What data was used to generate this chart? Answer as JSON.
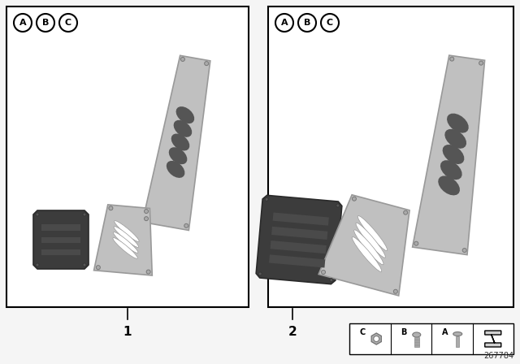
{
  "background": "#f5f5f5",
  "white": "#ffffff",
  "black": "#000000",
  "silver": "#c0c0c0",
  "silver_light": "#d8d8d8",
  "silver_dark": "#999999",
  "dark_rubber": "#3c3c3c",
  "dark_rubber2": "#4a4a4a",
  "stripe_dark": "#555555",
  "diagram_id": "267784",
  "box1_label": "1",
  "box2_label": "2",
  "abc_labels": [
    "A",
    "B",
    "C"
  ]
}
